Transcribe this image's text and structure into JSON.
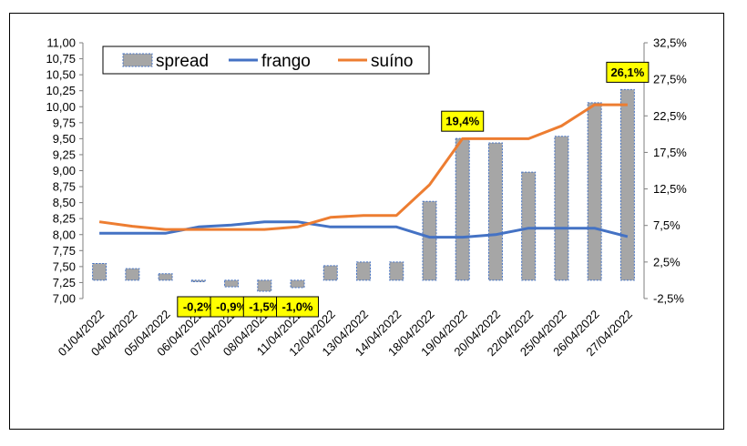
{
  "chart_data": {
    "type": "bar",
    "title": "",
    "xlabel": "",
    "ylabel": "",
    "categories": [
      "01/04/2022",
      "04/04/2022",
      "05/04/2022",
      "06/04/2022",
      "07/04/2022",
      "08/04/2022",
      "11/04/2022",
      "12/04/2022",
      "13/04/2022",
      "14/04/2022",
      "18/04/2022",
      "19/04/2022",
      "20/04/2022",
      "22/04/2022",
      "25/04/2022",
      "26/04/2022",
      "27/04/2022"
    ],
    "y_left": {
      "ylim": [
        7.0,
        11.0
      ],
      "ticks": [
        "7,00",
        "7,25",
        "7,50",
        "7,75",
        "8,00",
        "8,25",
        "8,50",
        "8,75",
        "9,00",
        "9,25",
        "9,50",
        "9,75",
        "10,00",
        "10,25",
        "10,50",
        "10,75",
        "11,00"
      ]
    },
    "y_right": {
      "ylim": [
        -2.5,
        32.5
      ],
      "ticks": [
        "-2,5%",
        "2,5%",
        "7,5%",
        "12,5%",
        "17,5%",
        "22,5%",
        "27,5%",
        "32,5%"
      ]
    },
    "series": [
      {
        "name": "spread",
        "kind": "bar",
        "axis": "right",
        "color": "#a6a6a6",
        "edge": "#4472c4",
        "values": [
          2.3,
          1.6,
          0.9,
          -0.2,
          -0.9,
          -1.5,
          -1.0,
          2.0,
          2.5,
          2.5,
          10.8,
          19.4,
          18.8,
          14.8,
          19.7,
          24.3,
          26.1
        ]
      },
      {
        "name": "frango",
        "kind": "line",
        "axis": "left",
        "color": "#4472c4",
        "values": [
          8.02,
          8.02,
          8.02,
          8.12,
          8.15,
          8.2,
          8.2,
          8.12,
          8.12,
          8.12,
          7.96,
          7.96,
          8.0,
          8.1,
          8.1,
          8.1,
          7.97
        ]
      },
      {
        "name": "suíno",
        "kind": "line",
        "axis": "left",
        "color": "#ed7d31",
        "values": [
          8.2,
          8.13,
          8.08,
          8.08,
          8.08,
          8.08,
          8.12,
          8.27,
          8.3,
          8.3,
          8.78,
          9.5,
          9.5,
          9.5,
          9.7,
          10.03,
          10.03
        ]
      }
    ],
    "data_labels": [
      {
        "index": 3,
        "text": "-0,2%"
      },
      {
        "index": 4,
        "text": "-0,9%"
      },
      {
        "index": 5,
        "text": "-1,5%"
      },
      {
        "index": 6,
        "text": "-1,0%"
      },
      {
        "index": 11,
        "text": "19,4%"
      },
      {
        "index": 16,
        "text": "26,1%"
      }
    ],
    "label_bg": "#ffff00",
    "legend": {
      "position": "top-left",
      "items": [
        "spread",
        "frango",
        "suíno"
      ]
    },
    "grid": false
  }
}
